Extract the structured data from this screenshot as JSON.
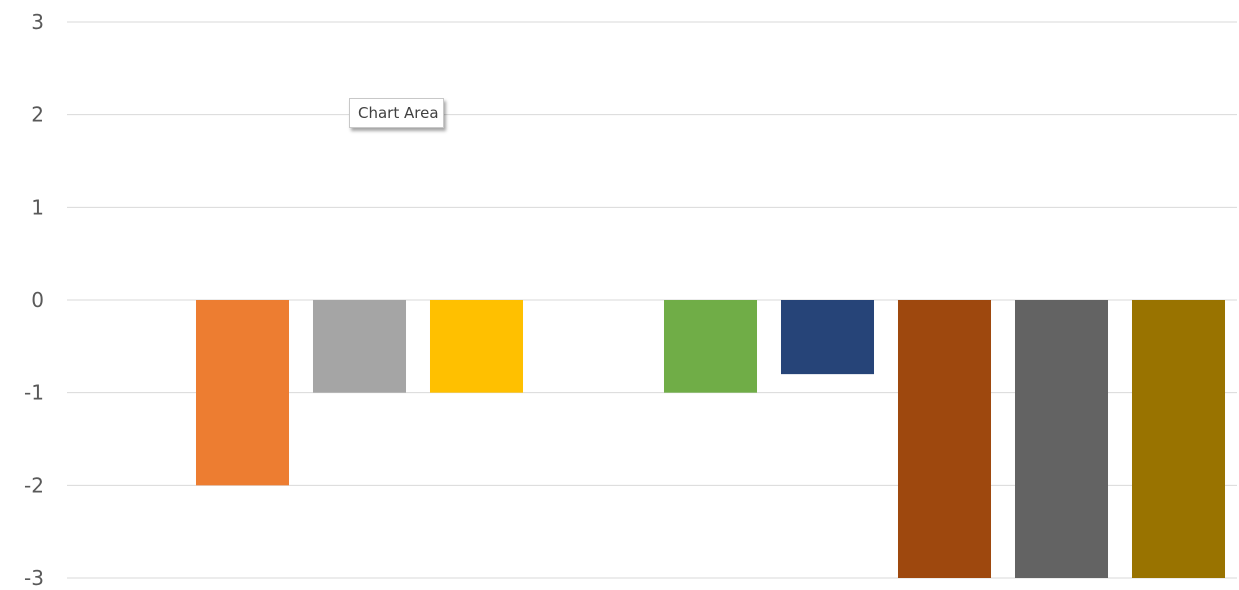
{
  "chart_data": {
    "type": "bar",
    "title": "",
    "xlabel": "",
    "ylabel": "",
    "ylim": [
      -3,
      3
    ],
    "yticks": [
      3,
      2,
      1,
      0,
      -1,
      -2,
      -3
    ],
    "grid": true,
    "legend": "none",
    "categories": [
      "",
      "",
      "",
      "",
      "",
      "",
      "",
      "",
      "",
      ""
    ],
    "values": [
      0,
      -2,
      -1,
      -1,
      0,
      -1,
      -0.8,
      -3,
      -3,
      -3
    ],
    "colors": [
      "#4472C4",
      "#ED7D31",
      "#A5A5A5",
      "#FFC000",
      "#5B9BD5",
      "#70AD47",
      "#264478",
      "#9E480E",
      "#636363",
      "#997300"
    ]
  },
  "tooltip": {
    "text": "Chart Area"
  },
  "colors": {
    "gridline": "#d9d9d9",
    "axis_text": "#595959"
  }
}
